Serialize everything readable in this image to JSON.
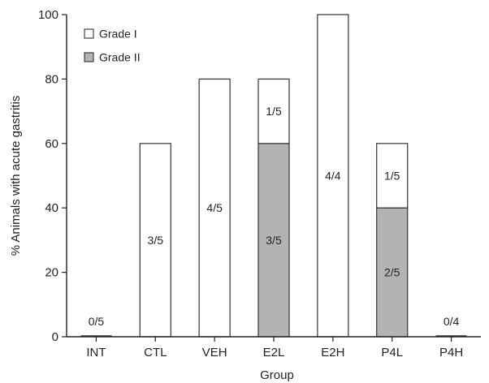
{
  "chart_data": {
    "type": "bar",
    "stacked": true,
    "categories": [
      "INT",
      "CTL",
      "VEH",
      "E2L",
      "E2H",
      "P4L",
      "P4H"
    ],
    "series": [
      {
        "name": "Grade II",
        "color": "#b3b3b3",
        "values": [
          0,
          0,
          0,
          60,
          0,
          40,
          0
        ]
      },
      {
        "name": "Grade I",
        "color": "#ffffff",
        "values": [
          0,
          60,
          80,
          20,
          100,
          20,
          0
        ]
      }
    ],
    "data_labels": {
      "Grade II": [
        "",
        "",
        "",
        "3/5",
        "",
        "2/5",
        ""
      ],
      "Grade I": [
        "",
        "3/5",
        "4/5",
        "1/5",
        "4/4",
        "1/5",
        ""
      ],
      "above": [
        "0/5",
        "",
        "",
        "",
        "",
        "",
        "0/4"
      ]
    },
    "legend_order": [
      "Grade I",
      "Grade II"
    ],
    "legend_position": "top-left",
    "xlabel": "Group",
    "ylabel": "% Animals with acute gastritis",
    "ylim": [
      0,
      100
    ],
    "yticks": [
      0,
      20,
      40,
      60,
      80,
      100
    ],
    "grid": false
  }
}
